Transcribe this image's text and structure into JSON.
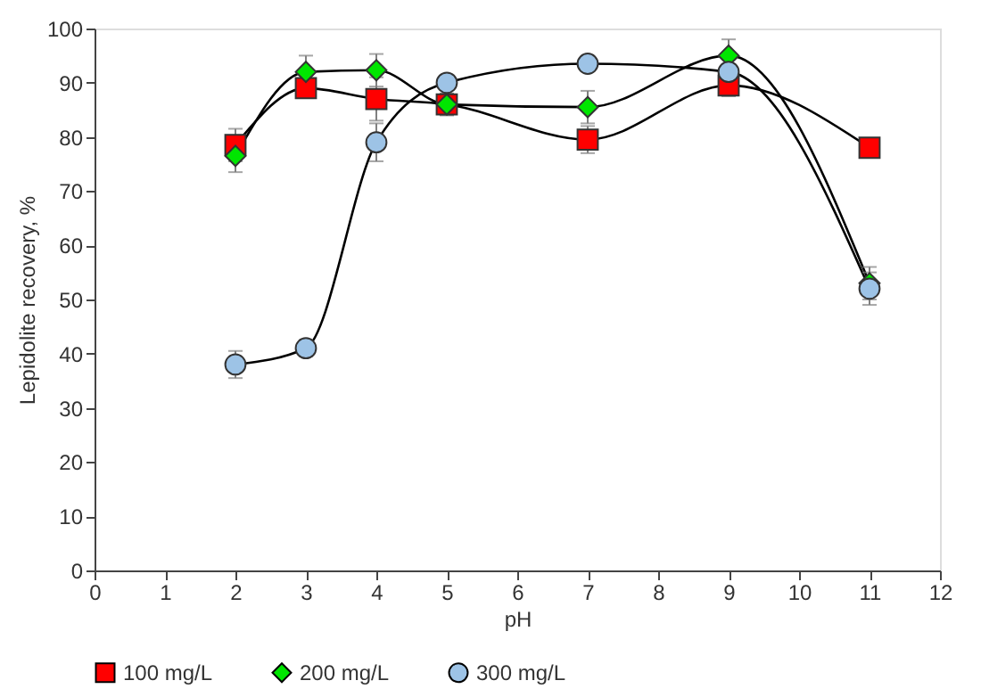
{
  "chart_data": {
    "type": "line",
    "xlabel": "pH",
    "ylabel": "Lepidolite recovery, %",
    "xlim": [
      0,
      12
    ],
    "xticks": [
      0,
      1,
      2,
      3,
      4,
      5,
      6,
      7,
      8,
      9,
      10,
      11,
      12
    ],
    "ylim": [
      0,
      100
    ],
    "yticks": [
      0,
      10,
      20,
      30,
      40,
      50,
      60,
      70,
      80,
      90,
      100
    ],
    "grid": false,
    "legend": "bottom",
    "line_style": "solid",
    "x": [
      2,
      3,
      4,
      5,
      7,
      9,
      11
    ],
    "series": [
      {
        "name": "100 mg/L",
        "color": "#ff0000",
        "marker": "square",
        "values": [
          78.5,
          89,
          87,
          86,
          79.5,
          89.5,
          78
        ],
        "errors": [
          3,
          1,
          4,
          2,
          2.5,
          2,
          null
        ]
      },
      {
        "name": "200 mg/L",
        "color": "#00e600",
        "marker": "diamond",
        "values": [
          76.5,
          92,
          92.3,
          86,
          85.5,
          95,
          53
        ],
        "errors": [
          3,
          3,
          3,
          2,
          3,
          3,
          3
        ]
      },
      {
        "name": "300 mg/L",
        "color": "#9dc3e6",
        "marker": "circle",
        "values": [
          38,
          41,
          79,
          90,
          93.5,
          92,
          52
        ],
        "errors": [
          2.5,
          1.5,
          3.5,
          1,
          null,
          null,
          3
        ]
      }
    ]
  }
}
